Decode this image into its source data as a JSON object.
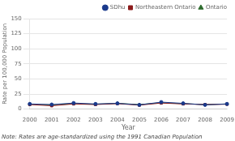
{
  "chart_data": {
    "type": "line",
    "xlabel": "Year",
    "ylabel": "Rate per 100,000 Population",
    "note": "Note: Rates are age-standardized using the 1991 Canadian Population",
    "categories": [
      "2000",
      "2001",
      "2002",
      "2003",
      "2004",
      "2005",
      "2006",
      "2007",
      "2008",
      "2009"
    ],
    "series": [
      {
        "name": "SDhu",
        "color": "#1a3a8c",
        "marker": "circle",
        "values": [
          8.5,
          7.5,
          10.0,
          8.5,
          9.5,
          7.0,
          11.5,
          9.5,
          7.0,
          8.5
        ]
      },
      {
        "name": "Northeastern Ontario",
        "color": "#8b1a1a",
        "marker": "square",
        "values": [
          7.5,
          5.5,
          8.5,
          7.5,
          9.0,
          6.5,
          10.0,
          8.5,
          7.5,
          8.0
        ]
      },
      {
        "name": "Ontario",
        "color": "#2d6b2d",
        "marker": "triangle",
        "values": [
          8.0,
          7.0,
          9.0,
          8.0,
          9.5,
          7.5,
          10.5,
          9.0,
          7.5,
          8.5
        ]
      }
    ],
    "ylim": [
      0,
      150
    ],
    "yticks": [
      0,
      25,
      50,
      75,
      100,
      125,
      150
    ],
    "grid": true,
    "legend": "upper right"
  }
}
